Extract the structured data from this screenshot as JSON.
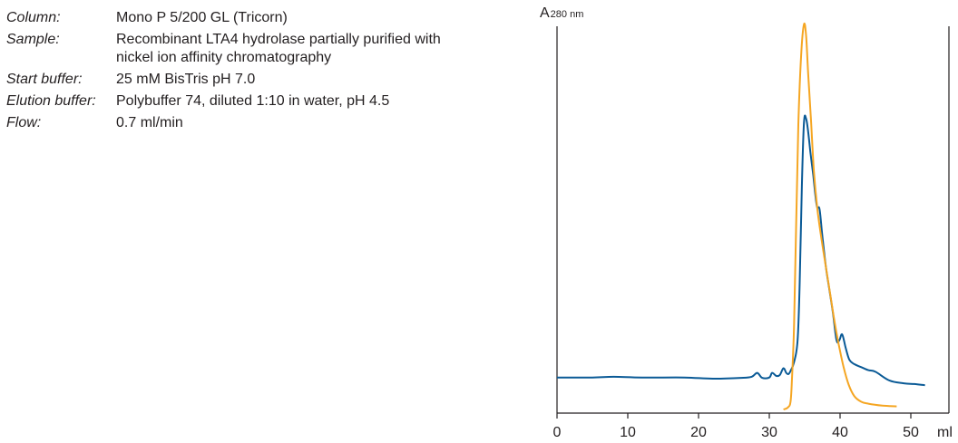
{
  "parameters": [
    {
      "label": "Column:",
      "value": "Mono P 5/200 GL (Tricorn)"
    },
    {
      "label": "Sample:",
      "value": "Recombinant LTA4 hydrolase partially purified with nickel ion affinity chromatography"
    },
    {
      "label": "Start buffer:",
      "value": "25 mM BisTris pH 7.0"
    },
    {
      "label": "Elution buffer:",
      "value": "Polybuffer 74, diluted 1:10 in water, pH 4.5"
    },
    {
      "label": "Flow:",
      "value": "0.7 ml/min"
    }
  ],
  "chart_data": {
    "type": "line",
    "ylabel_main": "A",
    "ylabel_sub": "280 nm",
    "xlabel": "ml",
    "xlim": [
      0,
      55
    ],
    "ylim": [
      0,
      100
    ],
    "xticks": [
      0,
      10,
      20,
      30,
      40,
      50
    ],
    "xtick_labels": [
      "0",
      "10",
      "20",
      "30",
      "40",
      "50"
    ],
    "grid": false,
    "series": [
      {
        "color": "#0a5a96",
        "x": [
          0,
          5,
          8,
          12,
          18,
          22,
          26,
          27.5,
          28.3,
          29,
          30,
          30.4,
          31,
          31.5,
          32,
          32.4,
          32.7,
          33,
          33.5,
          34,
          34.3,
          34.6,
          34.9,
          35.2,
          35.5,
          35.8,
          36.2,
          36.7,
          37.1,
          37.5,
          38,
          38.5,
          39,
          39.5,
          39.9,
          40.3,
          40.8,
          41.3,
          42,
          43,
          44,
          45,
          47,
          49,
          50.5,
          52
        ],
        "y": [
          8.3,
          8.3,
          8.5,
          8.3,
          8.3,
          8,
          8.2,
          8.5,
          9.5,
          8.2,
          8.3,
          9.5,
          8.7,
          9,
          10.7,
          9.5,
          9.2,
          10,
          12.3,
          18,
          33,
          58,
          74.5,
          75.5,
          72,
          67,
          61,
          53,
          52,
          45,
          37,
          31,
          25,
          18,
          18,
          19.5,
          16,
          13,
          11.8,
          11,
          10.2,
          9.8,
          7.5,
          6.8,
          6.6,
          6.3
        ]
      },
      {
        "color": "#f5a623",
        "x": [
          32,
          32.6,
          33,
          33.2,
          33.5,
          33.8,
          34.1,
          34.5,
          34.9,
          35.2,
          35.5,
          35.9,
          36.3,
          36.8,
          37.4,
          38,
          38.6,
          39.2,
          39.8,
          40.5,
          41.2,
          42,
          43,
          44,
          46,
          48
        ],
        "y": [
          0,
          0.5,
          2,
          8,
          22,
          48,
          74,
          92,
          100,
          97,
          87,
          75,
          62,
          52,
          44,
          37,
          30,
          23,
          17,
          11,
          6.5,
          3.5,
          2,
          1.5,
          1,
          0.8
        ]
      }
    ]
  }
}
